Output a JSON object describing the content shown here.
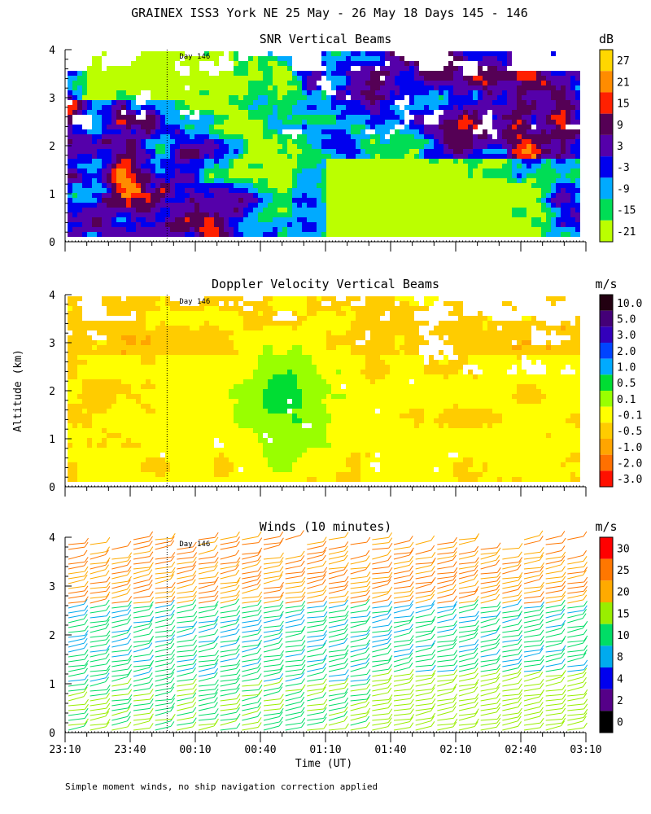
{
  "figure": {
    "title": "GRAINEX ISS3 York NE  25 May - 26 May 18 Days 145 - 146",
    "ylabel": "Altitude (km)",
    "xlabel": "Time (UT)",
    "footnote": "Simple moment winds, no ship navigation correction applied",
    "day_marker_label": "Day 146",
    "day_marker_time": "23:57"
  },
  "chart_data": [
    {
      "type": "heatmap",
      "title": "SNR Vertical Beams",
      "unit": "dB",
      "ylim": [
        0,
        4
      ],
      "yticks": [
        "0",
        "1",
        "2",
        "3",
        "4"
      ],
      "colorbar_labels": [
        "27",
        "21",
        "15",
        "9",
        "3",
        "-3",
        "-9",
        "-15",
        "-21"
      ],
      "colorbar_colors": [
        "#ffd700",
        "#ff8c00",
        "#ff2000",
        "#550055",
        "#5500aa",
        "#0000ee",
        "#00aaff",
        "#00dd55",
        "#bbff00"
      ],
      "value_range": [
        -21,
        27
      ]
    },
    {
      "type": "heatmap",
      "title": "Doppler Velocity Vertical Beams",
      "unit": "m/s",
      "ylim": [
        0,
        4
      ],
      "yticks": [
        "0",
        "1",
        "2",
        "3",
        "4"
      ],
      "colorbar_labels": [
        "10.0",
        "5.0",
        "3.0",
        "2.0",
        "1.0",
        "0.5",
        "0.1",
        "-0.1",
        "-0.5",
        "-1.0",
        "-2.0",
        "-3.0"
      ],
      "colorbar_colors": [
        "#220011",
        "#440077",
        "#3300bb",
        "#0044ff",
        "#00aaff",
        "#00dd33",
        "#99ff00",
        "#ffff00",
        "#ffcc00",
        "#ffa500",
        "#ff7000",
        "#ff1000"
      ],
      "value_range": [
        -3,
        10
      ]
    },
    {
      "type": "wind_barbs",
      "title": "Winds (10 minutes)",
      "unit": "m/s",
      "ylim": [
        0,
        4
      ],
      "yticks": [
        "0",
        "1",
        "2",
        "3",
        "4"
      ],
      "colorbar_labels": [
        "30",
        "25",
        "20",
        "15",
        "10",
        "8",
        "4",
        "2",
        "0"
      ],
      "colorbar_colors": [
        "#ff0000",
        "#ff7700",
        "#ffaa00",
        "#99ee00",
        "#00dd66",
        "#00aaee",
        "#0000ee",
        "#550088",
        "#000000"
      ],
      "profile_times": [
        "23:10",
        "23:20",
        "23:30",
        "23:40",
        "23:50",
        "00:00",
        "00:10",
        "00:20",
        "00:30",
        "00:40",
        "00:50",
        "01:00",
        "01:10",
        "01:20",
        "01:30",
        "01:40",
        "01:50",
        "02:00",
        "02:10",
        "02:20",
        "02:30",
        "02:40",
        "02:50",
        "03:00"
      ]
    }
  ],
  "xaxis": {
    "ticks": [
      "23:10",
      "23:40",
      "00:10",
      "00:40",
      "01:10",
      "01:40",
      "02:10",
      "02:40",
      "03:10"
    ],
    "range": [
      "23:10",
      "03:10"
    ]
  }
}
